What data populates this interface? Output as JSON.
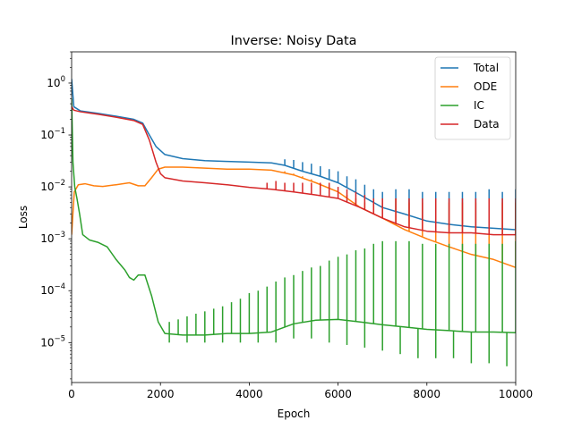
{
  "chart_data": {
    "type": "line",
    "title": "Inverse: Noisy Data",
    "xlabel": "Epoch",
    "ylabel": "Loss",
    "x_scale": "linear",
    "y_scale": "log",
    "xlim": [
      0,
      10000
    ],
    "ylim": [
      1.7e-06,
      4.0
    ],
    "x_ticks": [
      0,
      2000,
      4000,
      6000,
      8000,
      10000
    ],
    "x_tick_labels": [
      "0",
      "2000",
      "4000",
      "6000",
      "8000",
      "10000"
    ],
    "y_ticks": [
      1e-05,
      0.0001,
      0.001,
      0.01,
      0.1,
      1
    ],
    "y_tick_labels": [
      {
        "base": "10",
        "exp": "−5"
      },
      {
        "base": "10",
        "exp": "−4"
      },
      {
        "base": "10",
        "exp": "−3"
      },
      {
        "base": "10",
        "exp": "−2"
      },
      {
        "base": "10",
        "exp": "−1"
      },
      {
        "base": "10",
        "exp": "0"
      }
    ],
    "grid": false,
    "legend_position": "top-right",
    "series": [
      {
        "name": "Total",
        "color": "#1f77b4",
        "points": [
          [
            0,
            1.2
          ],
          [
            50,
            0.35
          ],
          [
            200,
            0.29
          ],
          [
            600,
            0.26
          ],
          [
            1000,
            0.23
          ],
          [
            1400,
            0.2
          ],
          [
            1600,
            0.17
          ],
          [
            1750,
            0.1
          ],
          [
            1900,
            0.06
          ],
          [
            2100,
            0.042
          ],
          [
            2500,
            0.035
          ],
          [
            3000,
            0.032
          ],
          [
            3500,
            0.031
          ],
          [
            4000,
            0.03
          ],
          [
            4500,
            0.029
          ],
          [
            4800,
            0.026
          ],
          [
            5200,
            0.02
          ],
          [
            5600,
            0.016
          ],
          [
            6000,
            0.012
          ],
          [
            6500,
            0.007
          ],
          [
            7000,
            0.004
          ],
          [
            7500,
            0.003
          ],
          [
            8000,
            0.0022
          ],
          [
            8500,
            0.0019
          ],
          [
            9000,
            0.0017
          ],
          [
            9500,
            0.0016
          ],
          [
            10000,
            0.0015
          ]
        ],
        "spikes": [
          [
            4800,
            0.034
          ],
          [
            5000,
            0.033
          ],
          [
            5200,
            0.03
          ],
          [
            5400,
            0.028
          ],
          [
            5600,
            0.025
          ],
          [
            5800,
            0.022
          ],
          [
            6000,
            0.02
          ],
          [
            6200,
            0.016
          ],
          [
            6400,
            0.014
          ],
          [
            6600,
            0.011
          ],
          [
            6800,
            0.009
          ],
          [
            7000,
            0.008
          ],
          [
            7300,
            0.009
          ],
          [
            7600,
            0.009
          ],
          [
            7900,
            0.008
          ],
          [
            8200,
            0.008
          ],
          [
            8500,
            0.008
          ],
          [
            8800,
            0.008
          ],
          [
            9100,
            0.008
          ],
          [
            9400,
            0.009
          ],
          [
            9700,
            0.008
          ],
          [
            10000,
            0.009
          ]
        ]
      },
      {
        "name": "ODE",
        "color": "#ff7f0e",
        "points": [
          [
            0,
            0.0012
          ],
          [
            60,
            0.008
          ],
          [
            150,
            0.011
          ],
          [
            300,
            0.0115
          ],
          [
            500,
            0.0105
          ],
          [
            700,
            0.0102
          ],
          [
            1000,
            0.011
          ],
          [
            1300,
            0.012
          ],
          [
            1500,
            0.0105
          ],
          [
            1650,
            0.0105
          ],
          [
            1800,
            0.015
          ],
          [
            1950,
            0.022
          ],
          [
            2100,
            0.024
          ],
          [
            2500,
            0.024
          ],
          [
            3000,
            0.023
          ],
          [
            3500,
            0.022
          ],
          [
            4000,
            0.022
          ],
          [
            4500,
            0.021
          ],
          [
            5000,
            0.017
          ],
          [
            5500,
            0.012
          ],
          [
            6000,
            0.008
          ],
          [
            6500,
            0.004
          ],
          [
            7000,
            0.0025
          ],
          [
            7500,
            0.0015
          ],
          [
            8000,
            0.001
          ],
          [
            8500,
            0.0007
          ],
          [
            9000,
            0.0005
          ],
          [
            9500,
            0.0004
          ],
          [
            10000,
            0.00028
          ]
        ],
        "spikes": [
          [
            4800,
            0.02
          ],
          [
            5000,
            0.018
          ],
          [
            5200,
            0.016
          ],
          [
            5400,
            0.014
          ],
          [
            5600,
            0.012
          ],
          [
            5800,
            0.01
          ],
          [
            6000,
            0.008
          ],
          [
            6200,
            0.007
          ],
          [
            6400,
            0.006
          ],
          [
            6600,
            0.005
          ],
          [
            6800,
            0.005
          ],
          [
            7000,
            0.005
          ],
          [
            7300,
            0.006
          ],
          [
            7600,
            0.005
          ],
          [
            7900,
            0.005
          ],
          [
            8200,
            0.005
          ],
          [
            8500,
            0.005
          ],
          [
            8800,
            0.005
          ],
          [
            9100,
            0.005
          ],
          [
            9400,
            0.005
          ],
          [
            9700,
            0.005
          ],
          [
            10000,
            0.005
          ]
        ]
      },
      {
        "name": "IC",
        "color": "#2ca02c",
        "points": [
          [
            0,
            0.5
          ],
          [
            30,
            0.03
          ],
          [
            70,
            0.01
          ],
          [
            120,
            0.006
          ],
          [
            180,
            0.003
          ],
          [
            250,
            0.0012
          ],
          [
            400,
            0.00095
          ],
          [
            600,
            0.00085
          ],
          [
            800,
            0.0007
          ],
          [
            1000,
            0.0004
          ],
          [
            1200,
            0.00025
          ],
          [
            1300,
            0.00018
          ],
          [
            1400,
            0.00016
          ],
          [
            1500,
            0.0002
          ],
          [
            1650,
            0.0002
          ],
          [
            1800,
            8e-05
          ],
          [
            1950,
            2.5e-05
          ],
          [
            2100,
            1.5e-05
          ],
          [
            2500,
            1.4e-05
          ],
          [
            3000,
            1.4e-05
          ],
          [
            3500,
            1.5e-05
          ],
          [
            4000,
            1.5e-05
          ],
          [
            4500,
            1.6e-05
          ],
          [
            5000,
            2.3e-05
          ],
          [
            5500,
            2.7e-05
          ],
          [
            6000,
            2.8e-05
          ],
          [
            6500,
            2.5e-05
          ],
          [
            7000,
            2.2e-05
          ],
          [
            7500,
            2e-05
          ],
          [
            8000,
            1.8e-05
          ],
          [
            8500,
            1.7e-05
          ],
          [
            9000,
            1.6e-05
          ],
          [
            9500,
            1.6e-05
          ],
          [
            10000,
            1.55e-05
          ]
        ],
        "spikes": [
          [
            2200,
            2.5e-05
          ],
          [
            2400,
            2.8e-05
          ],
          [
            2600,
            3.2e-05
          ],
          [
            2800,
            3.6e-05
          ],
          [
            3000,
            4e-05
          ],
          [
            3200,
            4.5e-05
          ],
          [
            3400,
            5e-05
          ],
          [
            3600,
            6e-05
          ],
          [
            3800,
            7e-05
          ],
          [
            4000,
            9e-05
          ],
          [
            4200,
            0.0001
          ],
          [
            4400,
            0.00012
          ],
          [
            4600,
            0.00015
          ],
          [
            4800,
            0.00018
          ],
          [
            5000,
            0.0002
          ],
          [
            5200,
            0.00024
          ],
          [
            5400,
            0.00028
          ],
          [
            5600,
            0.0003
          ],
          [
            5800,
            0.00038
          ],
          [
            6000,
            0.00045
          ],
          [
            6200,
            0.0005
          ],
          [
            6400,
            0.0006
          ],
          [
            6600,
            0.00065
          ],
          [
            6800,
            0.0008
          ],
          [
            7000,
            0.0009
          ],
          [
            7300,
            0.0009
          ],
          [
            7600,
            0.0009
          ],
          [
            7900,
            0.0008
          ],
          [
            8200,
            0.0008
          ],
          [
            8500,
            0.0008
          ],
          [
            8800,
            0.0008
          ],
          [
            9100,
            0.0008
          ],
          [
            9400,
            0.0008
          ],
          [
            9700,
            0.0008
          ],
          [
            10000,
            0.0009
          ]
        ],
        "dips": [
          [
            2200,
            1e-05
          ],
          [
            2600,
            1e-05
          ],
          [
            3000,
            1e-05
          ],
          [
            3400,
            1e-05
          ],
          [
            3800,
            1e-05
          ],
          [
            4200,
            1e-05
          ],
          [
            4600,
            1e-05
          ],
          [
            5000,
            1.2e-05
          ],
          [
            5400,
            1.2e-05
          ],
          [
            5800,
            1e-05
          ],
          [
            6200,
            9e-06
          ],
          [
            6600,
            8e-06
          ],
          [
            7000,
            7e-06
          ],
          [
            7400,
            6e-06
          ],
          [
            7800,
            5e-06
          ],
          [
            8200,
            5e-06
          ],
          [
            8600,
            5e-06
          ],
          [
            9000,
            4e-06
          ],
          [
            9400,
            4e-06
          ],
          [
            9800,
            3.5e-06
          ]
        ]
      },
      {
        "name": "Data",
        "color": "#d62728",
        "points": [
          [
            0,
            0.35
          ],
          [
            50,
            0.3
          ],
          [
            200,
            0.28
          ],
          [
            600,
            0.25
          ],
          [
            1000,
            0.22
          ],
          [
            1400,
            0.19
          ],
          [
            1600,
            0.16
          ],
          [
            1750,
            0.08
          ],
          [
            1900,
            0.03
          ],
          [
            2000,
            0.018
          ],
          [
            2100,
            0.015
          ],
          [
            2500,
            0.013
          ],
          [
            3000,
            0.012
          ],
          [
            3500,
            0.011
          ],
          [
            4000,
            0.0098
          ],
          [
            4500,
            0.009
          ],
          [
            5000,
            0.008
          ],
          [
            5500,
            0.007
          ],
          [
            6000,
            0.006
          ],
          [
            6500,
            0.004
          ],
          [
            7000,
            0.0025
          ],
          [
            7500,
            0.0017
          ],
          [
            8000,
            0.0014
          ],
          [
            8500,
            0.0013
          ],
          [
            9000,
            0.0013
          ],
          [
            9500,
            0.0012
          ],
          [
            10000,
            0.0012
          ]
        ],
        "spikes": [
          [
            4400,
            0.012
          ],
          [
            4600,
            0.013
          ],
          [
            4800,
            0.012
          ],
          [
            5000,
            0.012
          ],
          [
            5200,
            0.012
          ],
          [
            5400,
            0.012
          ],
          [
            5600,
            0.012
          ],
          [
            5800,
            0.012
          ],
          [
            6000,
            0.01
          ],
          [
            6200,
            0.009
          ],
          [
            6400,
            0.008
          ],
          [
            6600,
            0.007
          ],
          [
            6800,
            0.006
          ],
          [
            7000,
            0.006
          ],
          [
            7300,
            0.006
          ],
          [
            7600,
            0.006
          ],
          [
            7900,
            0.006
          ],
          [
            8200,
            0.006
          ],
          [
            8500,
            0.006
          ],
          [
            8800,
            0.006
          ],
          [
            9100,
            0.006
          ],
          [
            9400,
            0.006
          ],
          [
            9700,
            0.006
          ],
          [
            10000,
            0.006
          ]
        ]
      }
    ]
  }
}
